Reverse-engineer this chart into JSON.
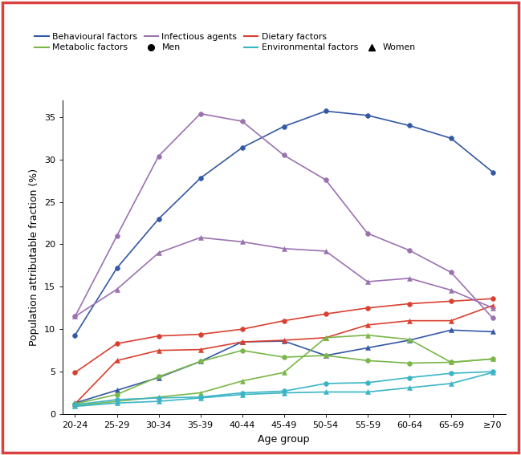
{
  "age_groups": [
    "20-24",
    "25-29",
    "30-34",
    "35-39",
    "40-44",
    "45-49",
    "50-54",
    "55-59",
    "60-64",
    "65-69",
    "≥70"
  ],
  "behavioural_men": [
    9.3,
    17.2,
    23.0,
    27.8,
    31.4,
    33.9,
    35.7,
    35.2,
    34.0,
    32.5,
    28.5
  ],
  "behavioural_women": [
    1.3,
    2.8,
    4.3,
    6.2,
    8.5,
    8.6,
    6.9,
    7.8,
    8.7,
    9.9,
    9.7
  ],
  "dietary_men": [
    4.9,
    8.3,
    9.2,
    9.4,
    10.0,
    11.0,
    11.8,
    12.5,
    13.0,
    13.3,
    13.6
  ],
  "dietary_women": [
    1.2,
    6.3,
    7.5,
    7.6,
    8.5,
    8.7,
    9.0,
    10.5,
    11.0,
    11.0,
    12.8
  ],
  "metabolic_men": [
    1.2,
    2.3,
    4.4,
    6.2,
    7.5,
    6.7,
    6.9,
    6.3,
    6.0,
    6.1,
    6.5
  ],
  "metabolic_women": [
    1.0,
    1.5,
    2.0,
    2.5,
    3.9,
    4.9,
    9.0,
    9.3,
    8.8,
    6.1,
    6.5
  ],
  "infectious_men": [
    11.5,
    21.0,
    30.4,
    35.4,
    34.5,
    30.5,
    27.6,
    21.3,
    19.3,
    16.7,
    11.3
  ],
  "infectious_women": [
    11.5,
    14.7,
    19.0,
    20.8,
    20.3,
    19.5,
    19.2,
    15.6,
    16.0,
    14.6,
    12.5
  ],
  "environmental_men": [
    1.1,
    1.7,
    1.9,
    2.0,
    2.5,
    2.7,
    3.6,
    3.7,
    4.3,
    4.8,
    5.0
  ],
  "environmental_women": [
    0.9,
    1.3,
    1.5,
    1.9,
    2.3,
    2.5,
    2.6,
    2.6,
    3.1,
    3.6,
    4.9
  ],
  "colors": {
    "behavioural": "#3358a4",
    "dietary": "#d94030",
    "metabolic": "#7ab648",
    "infectious": "#9b72b0",
    "environmental": "#3ab5c6"
  },
  "xlabel": "Age group",
  "ylabel": "Population attributable fraction (%)",
  "ylim": [
    0,
    37
  ],
  "yticks": [
    0,
    5,
    10,
    15,
    20,
    25,
    30,
    35
  ],
  "border_color": "#d94040",
  "legend_row1": [
    "Behavioural factors",
    "Metabolic factors",
    "Infectious agents",
    "Men"
  ],
  "legend_row2": [
    "Dietary factors",
    "Environmental factors",
    "",
    "Women"
  ]
}
